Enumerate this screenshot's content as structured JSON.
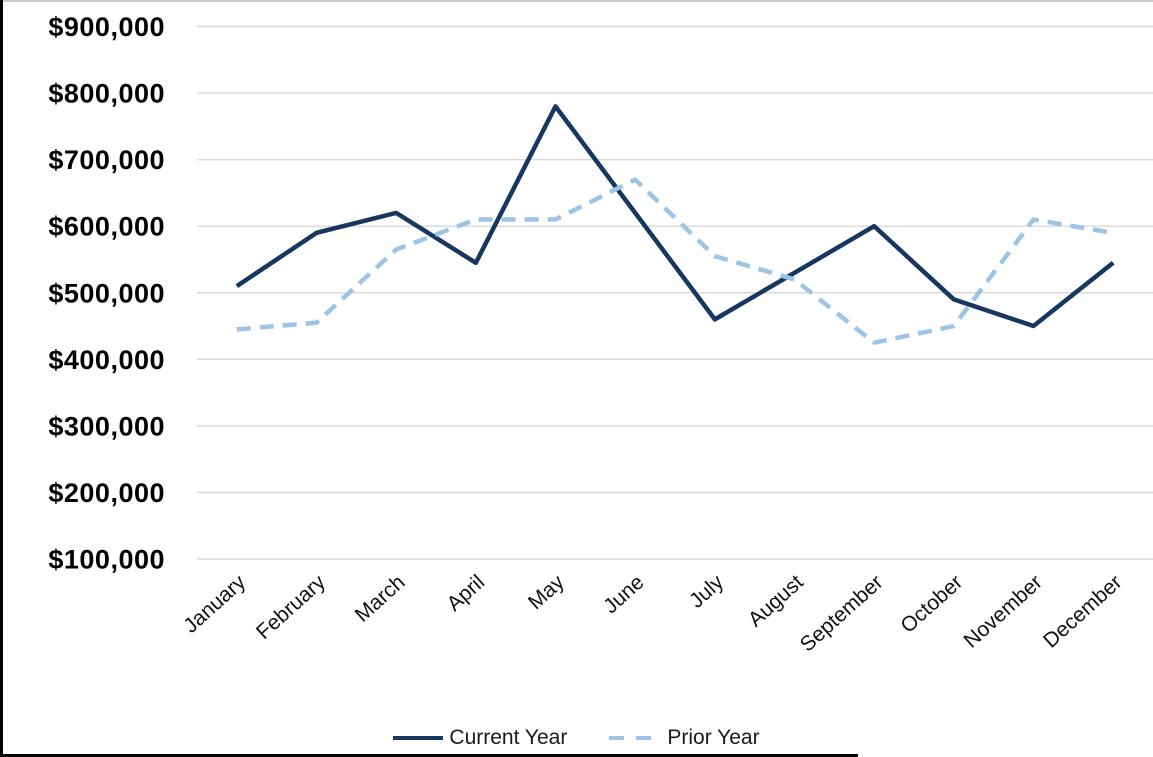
{
  "chart_data": {
    "type": "line",
    "title": "",
    "xlabel": "",
    "ylabel": "",
    "categories": [
      "January",
      "February",
      "March",
      "April",
      "May",
      "June",
      "July",
      "August",
      "September",
      "October",
      "November",
      "December"
    ],
    "series": [
      {
        "name": "Current Year",
        "style": "solid",
        "color": "#17375e",
        "values": [
          510000,
          590000,
          620000,
          545000,
          780000,
          620000,
          460000,
          530000,
          600000,
          490000,
          450000,
          545000
        ]
      },
      {
        "name": "Prior Year",
        "style": "dashed",
        "color": "#9dc3e6",
        "values": [
          445000,
          455000,
          565000,
          610000,
          610000,
          670000,
          555000,
          520000,
          425000,
          450000,
          610000,
          590000
        ]
      }
    ],
    "ylim": [
      100000,
      900000
    ],
    "y_ticks": [
      "$100,000",
      "$200,000",
      "$300,000",
      "$400,000",
      "$500,000",
      "$600,000",
      "$700,000",
      "$800,000",
      "$900,000"
    ],
    "grid": true,
    "gridline_color": "#d9d9d9",
    "x_label_rotation_deg": -42,
    "legend_position": "bottom-center"
  }
}
